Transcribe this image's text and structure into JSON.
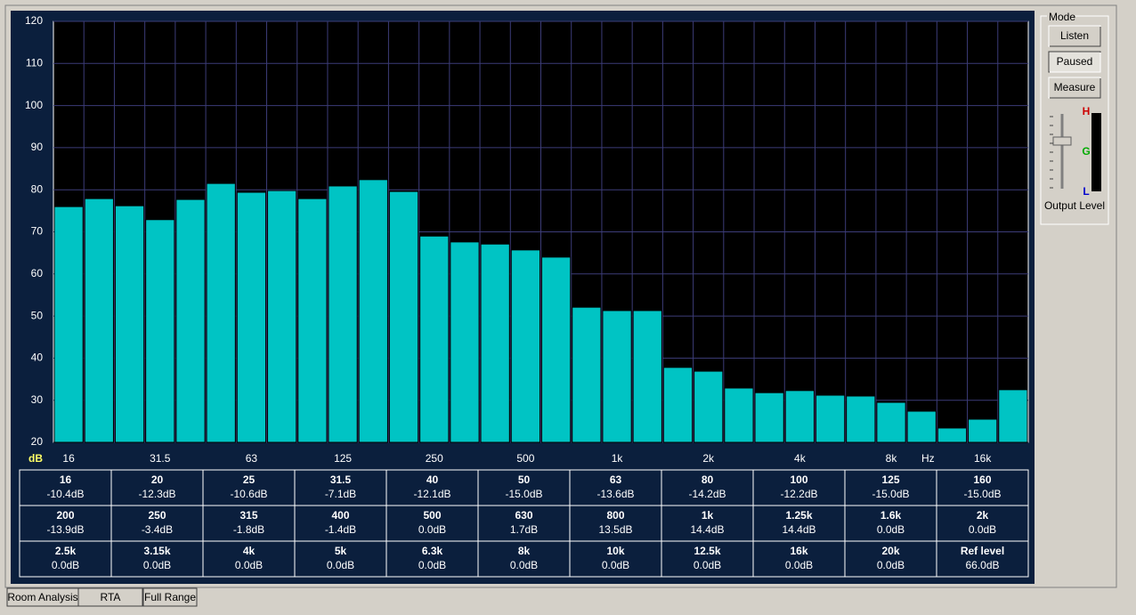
{
  "chart_data": {
    "type": "bar",
    "y_label": "dB",
    "x_unit": "Hz",
    "color": "#00c4c4",
    "grid": true,
    "categories": [
      "16",
      null,
      null,
      "31.5",
      null,
      null,
      "63",
      null,
      null,
      "125",
      null,
      null,
      "250",
      null,
      null,
      "500",
      null,
      null,
      "1k",
      null,
      null,
      "2k",
      null,
      null,
      "4k",
      null,
      null,
      "8k",
      null,
      null,
      "16k",
      null
    ],
    "values": [
      76.0,
      77.9,
      76.2,
      72.9,
      77.7,
      81.5,
      79.4,
      79.8,
      77.9,
      80.9,
      82.4,
      79.6,
      69.0,
      67.6,
      67.1,
      65.7,
      64.0,
      52.1,
      51.3,
      51.3,
      37.8,
      36.9,
      32.9,
      31.8,
      32.3,
      31.2,
      31.0,
      29.5,
      27.4,
      23.4,
      25.5,
      32.5
    ],
    "ylim": [
      20,
      120
    ],
    "yticks": [
      20,
      30,
      40,
      50,
      60,
      70,
      80,
      90,
      100,
      110,
      120
    ]
  },
  "table": {
    "rows": [
      [
        [
          "16",
          "-10.4dB"
        ],
        [
          "20",
          "-12.3dB"
        ],
        [
          "25",
          "-10.6dB"
        ],
        [
          "31.5",
          "-7.1dB"
        ],
        [
          "40",
          "-12.1dB"
        ],
        [
          "50",
          "-15.0dB"
        ],
        [
          "63",
          "-13.6dB"
        ],
        [
          "80",
          "-14.2dB"
        ],
        [
          "100",
          "-12.2dB"
        ],
        [
          "125",
          "-15.0dB"
        ],
        [
          "160",
          "-15.0dB"
        ]
      ],
      [
        [
          "200",
          "-13.9dB"
        ],
        [
          "250",
          "-3.4dB"
        ],
        [
          "315",
          "-1.8dB"
        ],
        [
          "400",
          "-1.4dB"
        ],
        [
          "500",
          "0.0dB"
        ],
        [
          "630",
          "1.7dB"
        ],
        [
          "800",
          "13.5dB"
        ],
        [
          "1k",
          "14.4dB"
        ],
        [
          "1.25k",
          "14.4dB"
        ],
        [
          "1.6k",
          "0.0dB"
        ],
        [
          "2k",
          "0.0dB"
        ]
      ],
      [
        [
          "2.5k",
          "0.0dB"
        ],
        [
          "3.15k",
          "0.0dB"
        ],
        [
          "4k",
          "0.0dB"
        ],
        [
          "5k",
          "0.0dB"
        ],
        [
          "6.3k",
          "0.0dB"
        ],
        [
          "8k",
          "0.0dB"
        ],
        [
          "10k",
          "0.0dB"
        ],
        [
          "12.5k",
          "0.0dB"
        ],
        [
          "16k",
          "0.0dB"
        ],
        [
          "20k",
          "0.0dB"
        ],
        [
          "Ref level",
          "66.0dB"
        ]
      ]
    ]
  },
  "mode": {
    "title": "Mode",
    "buttons": [
      "Listen",
      "Paused",
      "Measure"
    ],
    "meter_labels": [
      "H",
      "G",
      "L"
    ],
    "output_label": "Output Level"
  },
  "tabs": [
    "Room Analysis",
    "RTA",
    "Full Range"
  ]
}
